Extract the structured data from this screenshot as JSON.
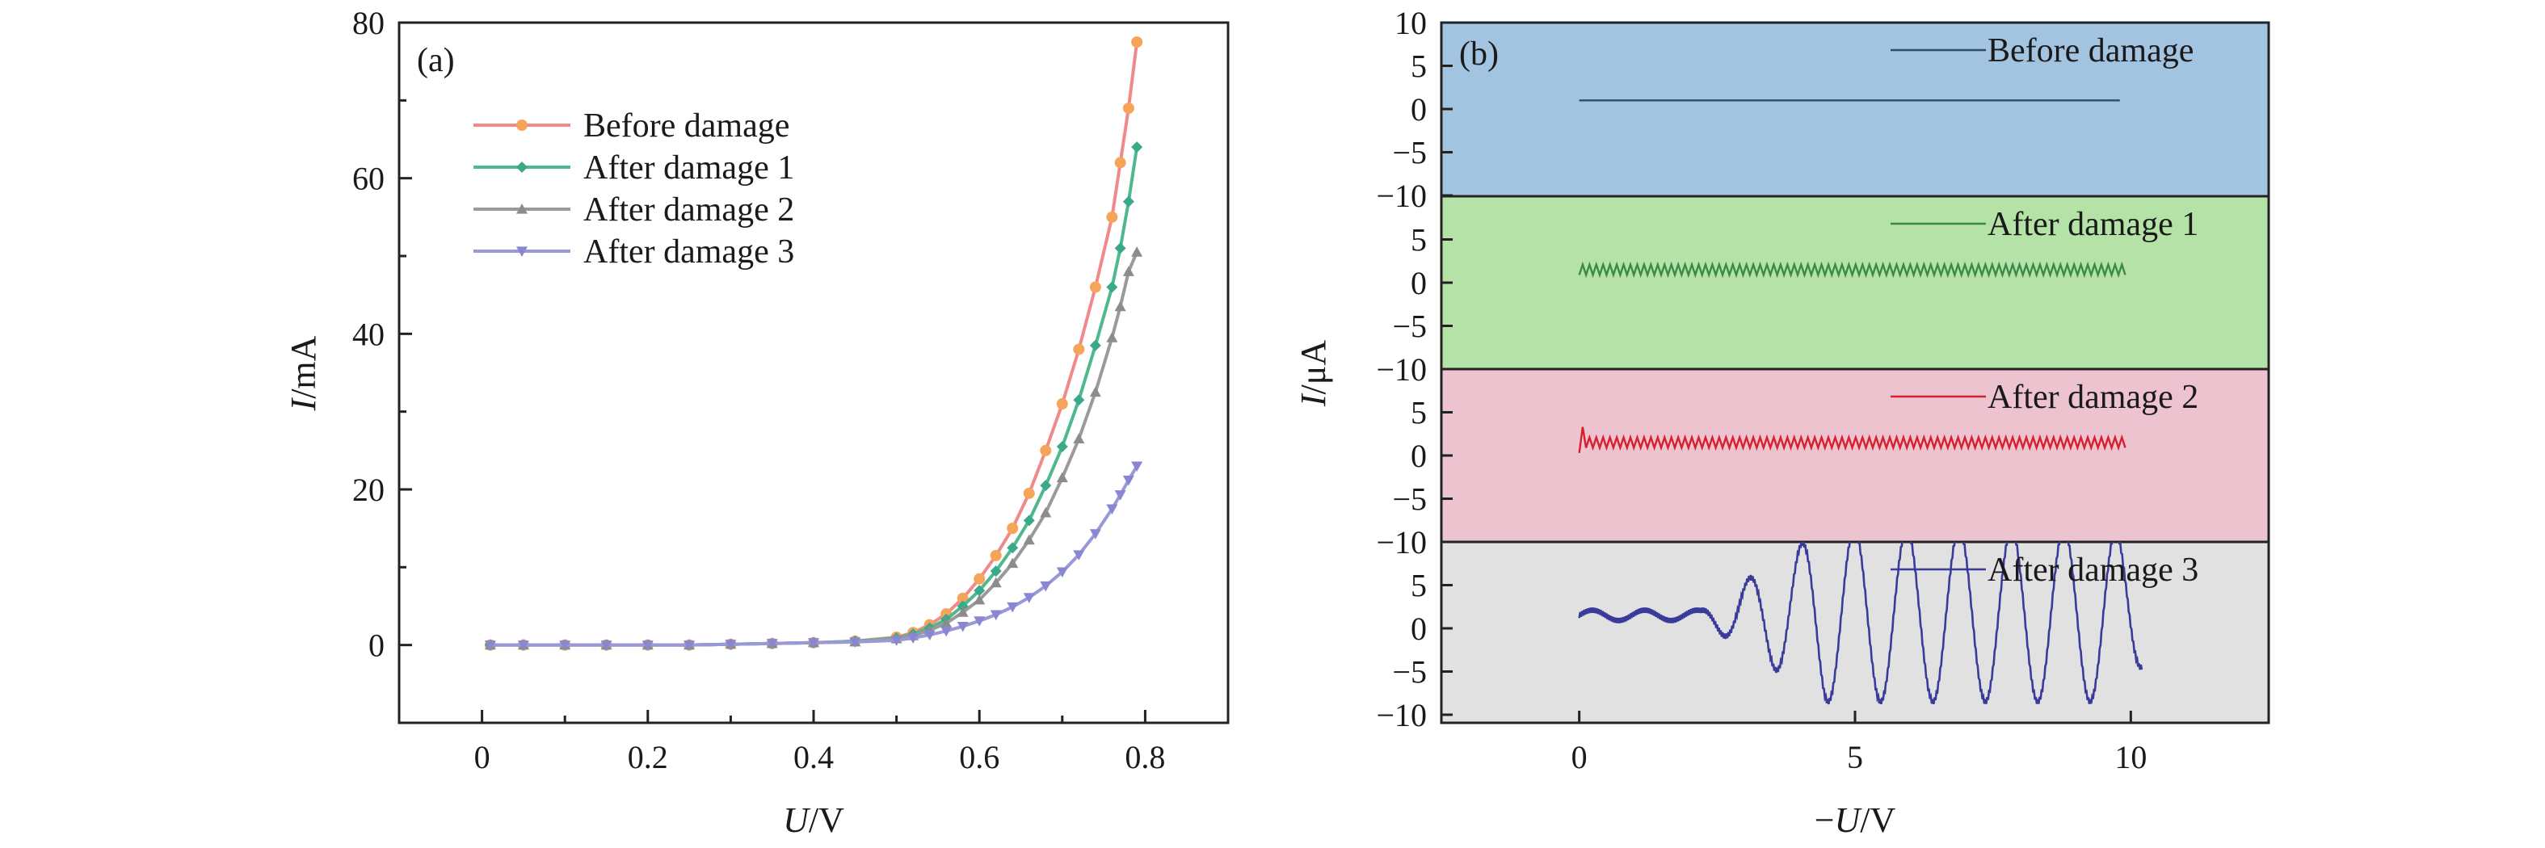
{
  "chart_data": [
    {
      "type": "line",
      "panel": "(a)",
      "xlabel": "U/V",
      "xlabel_italic": "U",
      "xlabel_unit": "/V",
      "ylabel": "I/mA",
      "ylabel_italic": "I",
      "ylabel_unit": "/mA",
      "xlim": [
        -0.1,
        0.9
      ],
      "ylim": [
        -10,
        80
      ],
      "xticks": [
        0,
        0.2,
        0.4,
        0.6,
        0.8
      ],
      "xtick_labels": [
        "0",
        "0.2",
        "0.4",
        "0.6",
        "0.8"
      ],
      "yticks": [
        0,
        20,
        40,
        60,
        80
      ],
      "ytick_labels": [
        "0",
        "20",
        "40",
        "60",
        "80"
      ],
      "grid": false,
      "legend_position": "top-left",
      "series": [
        {
          "name": "Before damage",
          "color": "#f08a8a",
          "marker_color": "#f5a45a",
          "marker": "circle",
          "x": [
            0.01,
            0.05,
            0.1,
            0.15,
            0.2,
            0.25,
            0.3,
            0.35,
            0.4,
            0.45,
            0.5,
            0.52,
            0.54,
            0.56,
            0.58,
            0.6,
            0.62,
            0.64,
            0.66,
            0.68,
            0.7,
            0.72,
            0.74,
            0.76,
            0.77,
            0.78,
            0.79
          ],
          "y": [
            0,
            0,
            0,
            0,
            0,
            0,
            0.1,
            0.2,
            0.3,
            0.5,
            1.0,
            1.6,
            2.6,
            4.0,
            6.0,
            8.5,
            11.5,
            15.0,
            19.5,
            25.0,
            31.0,
            38.0,
            46.0,
            55.0,
            62.0,
            69.0,
            77.5
          ]
        },
        {
          "name": "After damage 1",
          "color": "#4fb88c",
          "marker_color": "#3aa88a",
          "marker": "diamond",
          "x": [
            0.01,
            0.05,
            0.1,
            0.15,
            0.2,
            0.25,
            0.3,
            0.35,
            0.4,
            0.45,
            0.5,
            0.52,
            0.54,
            0.56,
            0.58,
            0.6,
            0.62,
            0.64,
            0.66,
            0.68,
            0.7,
            0.72,
            0.74,
            0.76,
            0.77,
            0.78,
            0.79
          ],
          "y": [
            0,
            0,
            0,
            0,
            0,
            0,
            0.1,
            0.2,
            0.3,
            0.5,
            0.9,
            1.4,
            2.2,
            3.3,
            5.0,
            7.0,
            9.5,
            12.5,
            16.0,
            20.5,
            25.5,
            31.5,
            38.5,
            46.0,
            51.0,
            57.0,
            64.0
          ]
        },
        {
          "name": "After damage 2",
          "color": "#9a9a9a",
          "marker_color": "#8c8c8c",
          "marker": "triangle-up",
          "x": [
            0.01,
            0.05,
            0.1,
            0.15,
            0.2,
            0.25,
            0.3,
            0.35,
            0.4,
            0.45,
            0.5,
            0.52,
            0.54,
            0.56,
            0.58,
            0.6,
            0.62,
            0.64,
            0.66,
            0.68,
            0.7,
            0.72,
            0.74,
            0.76,
            0.77,
            0.78,
            0.79
          ],
          "y": [
            0,
            0,
            0,
            0,
            0,
            0,
            0.1,
            0.2,
            0.3,
            0.4,
            0.8,
            1.2,
            1.9,
            2.8,
            4.2,
            5.8,
            8.0,
            10.5,
            13.5,
            17.0,
            21.5,
            26.5,
            32.5,
            39.5,
            43.5,
            48.0,
            50.5
          ]
        },
        {
          "name": "After damage 3",
          "color": "#9a98d6",
          "marker_color": "#8a87d2",
          "marker": "triangle-down",
          "x": [
            0.01,
            0.05,
            0.1,
            0.15,
            0.2,
            0.25,
            0.3,
            0.35,
            0.4,
            0.45,
            0.5,
            0.52,
            0.54,
            0.56,
            0.58,
            0.6,
            0.62,
            0.64,
            0.66,
            0.68,
            0.7,
            0.72,
            0.74,
            0.76,
            0.77,
            0.78,
            0.79
          ],
          "y": [
            0,
            0,
            0,
            0,
            0,
            0,
            0.1,
            0.2,
            0.3,
            0.4,
            0.6,
            0.9,
            1.3,
            1.8,
            2.4,
            3.1,
            3.9,
            4.9,
            6.1,
            7.6,
            9.4,
            11.6,
            14.3,
            17.5,
            19.3,
            21.2,
            23.0
          ]
        }
      ]
    },
    {
      "type": "line",
      "panel": "(b)",
      "xlabel": "−U/V",
      "xlabel_prefix": "−",
      "xlabel_italic": "U",
      "xlabel_unit": "/V",
      "ylabel": "I/μA",
      "ylabel_italic": "I",
      "ylabel_unit": "/μA",
      "xlim": [
        -2.5,
        12.5
      ],
      "xticks": [
        0,
        5,
        10
      ],
      "xtick_labels": [
        "0",
        "5",
        "10"
      ],
      "grid": false,
      "stacked_panels": [
        {
          "name": "Before damage",
          "bg_color": "#a3c4e1",
          "line_color": "#2a4d6e",
          "ylim": [
            -10,
            10
          ],
          "yticks": [
            10,
            5,
            0,
            -5,
            -10
          ],
          "ytick_labels": [
            "10",
            "5",
            "0",
            "−5",
            "−10"
          ],
          "x": [
            0,
            9.8
          ],
          "y": [
            1.0,
            1.0
          ]
        },
        {
          "name": "After damage 1",
          "bg_color": "#b5e3a7",
          "line_color": "#3a8a4a",
          "ylim": [
            -10,
            10
          ],
          "yticks": [
            5,
            0,
            -5,
            -10
          ],
          "ytick_labels": [
            "5",
            "0",
            "−5",
            "−10"
          ],
          "x": [
            0,
            9.9
          ],
          "y": [
            1.3,
            1.3
          ],
          "ripple": 0.8
        },
        {
          "name": "After damage 2",
          "bg_color": "#edc3cf",
          "line_color": "#d62030",
          "ylim": [
            -10,
            10
          ],
          "yticks": [
            5,
            0,
            -5,
            -10
          ],
          "ytick_labels": [
            "5",
            "0",
            "−5",
            "−10"
          ],
          "x": [
            0,
            9.9
          ],
          "y": [
            1.3,
            1.3
          ],
          "ripple": 0.8
        },
        {
          "name": "After damage 3",
          "bg_color": "#e1e1e1",
          "line_color": "#3a3a9a",
          "ylim": [
            -10,
            10
          ],
          "yticks": [
            5,
            0,
            -5,
            -10
          ],
          "ytick_labels": [
            "5",
            "0",
            "−5",
            "−10"
          ],
          "x": [
            0,
            10.2
          ],
          "y": [
            1.5,
            1.5
          ],
          "oscillation_amplitude_max": 10
        }
      ]
    }
  ]
}
